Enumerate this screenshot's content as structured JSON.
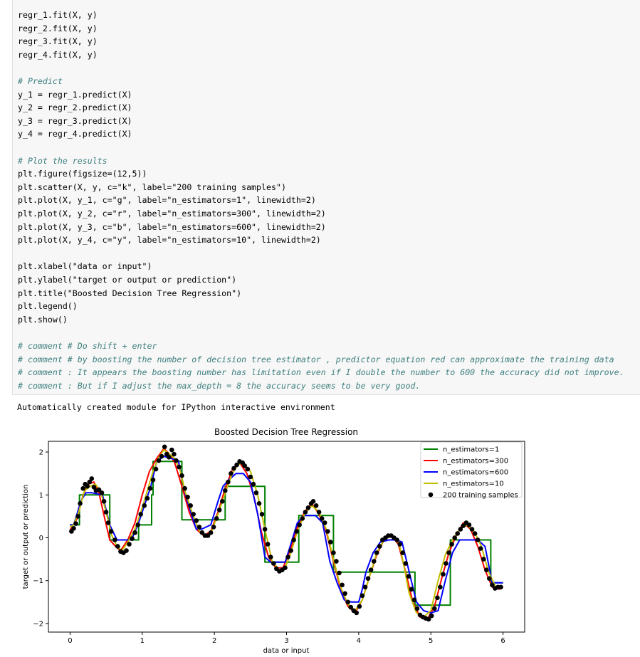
{
  "code_cell": {
    "lines": [
      {
        "text": "regr_1.fit(X, y)",
        "kind": "code"
      },
      {
        "text": "regr_2.fit(X, y)",
        "kind": "code"
      },
      {
        "text": "regr_3.fit(X, y)",
        "kind": "code"
      },
      {
        "text": "regr_4.fit(X, y)",
        "kind": "code"
      },
      {
        "text": "",
        "kind": "blank"
      },
      {
        "text": "# Predict",
        "kind": "comment"
      },
      {
        "text": "y_1 = regr_1.predict(X)",
        "kind": "code"
      },
      {
        "text": "y_2 = regr_2.predict(X)",
        "kind": "code"
      },
      {
        "text": "y_3 = regr_3.predict(X)",
        "kind": "code"
      },
      {
        "text": "y_4 = regr_4.predict(X)",
        "kind": "code"
      },
      {
        "text": "",
        "kind": "blank"
      },
      {
        "text": "# Plot the results",
        "kind": "comment"
      },
      {
        "text": "plt.figure(figsize=(12,5))",
        "kind": "code"
      },
      {
        "text": "plt.scatter(X, y, c=\"k\", label=\"200 training samples\")",
        "kind": "code"
      },
      {
        "text": "plt.plot(X, y_1, c=\"g\", label=\"n_estimators=1\", linewidth=2)",
        "kind": "code"
      },
      {
        "text": "plt.plot(X, y_2, c=\"r\", label=\"n_estimators=300\", linewidth=2)",
        "kind": "code"
      },
      {
        "text": "plt.plot(X, y_3, c=\"b\", label=\"n_estimators=600\", linewidth=2)",
        "kind": "code"
      },
      {
        "text": "plt.plot(X, y_4, c=\"y\", label=\"n_estimators=10\", linewidth=2)",
        "kind": "code"
      },
      {
        "text": "",
        "kind": "blank"
      },
      {
        "text": "plt.xlabel(\"data or input\")",
        "kind": "code"
      },
      {
        "text": "plt.ylabel(\"target or output or prediction\")",
        "kind": "code"
      },
      {
        "text": "plt.title(\"Boosted Decision Tree Regression\")",
        "kind": "code"
      },
      {
        "text": "plt.legend()",
        "kind": "code"
      },
      {
        "text": "plt.show()",
        "kind": "code"
      },
      {
        "text": "",
        "kind": "blank"
      },
      {
        "text": "# comment # Do shift + enter",
        "kind": "comment"
      },
      {
        "text": "# comment # by boosting the number of decision tree estimator , predictor equation red can approximate the training data",
        "kind": "comment"
      },
      {
        "text": "# comment : It appears the boosting number has limitation even if I double the number to 600 the accuracy did not improve.",
        "kind": "comment"
      },
      {
        "text": "# comment : But if I adjust the max_depth = 8 the accuracy seems to be very good.",
        "kind": "comment"
      }
    ]
  },
  "output": {
    "stdout": "Automatically created module for IPython interactive environment"
  },
  "chart_data": {
    "type": "line",
    "title": "Boosted Decision Tree Regression",
    "xlabel": "data or input",
    "ylabel": "target or output or prediction",
    "xlim": [
      -0.3,
      6.3
    ],
    "ylim": [
      -2.2,
      2.25
    ],
    "xticks": [
      0,
      1,
      2,
      3,
      4,
      5,
      6
    ],
    "yticks": [
      2,
      1,
      0,
      -1,
      -2
    ],
    "ytick_labels": [
      "2",
      "1",
      "0",
      "−1",
      "−2"
    ],
    "legend_position": "upper right",
    "legend": [
      {
        "label": "n_estimators=1",
        "color": "#008000",
        "kind": "line"
      },
      {
        "label": "n_estimators=300",
        "color": "#ff0000",
        "kind": "line"
      },
      {
        "label": "n_estimators=600",
        "color": "#0000ff",
        "kind": "line"
      },
      {
        "label": "n_estimators=10",
        "color": "#bfbf00",
        "kind": "line"
      },
      {
        "label": "200 training samples",
        "color": "#000000",
        "kind": "marker"
      }
    ],
    "series": [
      {
        "name": "n_estimators=1",
        "color": "#008000",
        "kind": "step",
        "steps": [
          [
            0.0,
            0.3
          ],
          [
            0.13,
            1.0
          ],
          [
            0.55,
            -0.05
          ],
          [
            0.95,
            0.3
          ],
          [
            1.13,
            1.0
          ],
          [
            1.15,
            1.78
          ],
          [
            1.55,
            0.42
          ],
          [
            2.15,
            1.2
          ],
          [
            2.7,
            -0.57
          ],
          [
            3.17,
            0.52
          ],
          [
            3.65,
            -0.8
          ],
          [
            4.78,
            -1.57
          ],
          [
            5.27,
            -0.05
          ],
          [
            5.83,
            -1.05
          ],
          [
            6.0,
            -1.05
          ]
        ]
      },
      {
        "name": "n_estimators=300",
        "color": "#ff0000",
        "kind": "line",
        "x": [
          0,
          0.1,
          0.18,
          0.25,
          0.33,
          0.4,
          0.48,
          0.55,
          0.63,
          0.7,
          0.8,
          0.9,
          1.0,
          1.1,
          1.2,
          1.3,
          1.38,
          1.45,
          1.55,
          1.65,
          1.75,
          1.85,
          1.95,
          2.05,
          2.15,
          2.25,
          2.35,
          2.45,
          2.55,
          2.65,
          2.75,
          2.85,
          2.95,
          3.05,
          3.15,
          3.25,
          3.35,
          3.45,
          3.55,
          3.65,
          3.75,
          3.85,
          3.95,
          4.05,
          4.15,
          4.25,
          4.35,
          4.45,
          4.55,
          4.65,
          4.75,
          4.85,
          4.95,
          5.05,
          5.15,
          5.25,
          5.35,
          5.45,
          5.55,
          5.65,
          5.75,
          5.85,
          5.95,
          6.0
        ],
        "y": [
          0.18,
          0.45,
          1.0,
          1.25,
          1.3,
          1.05,
          0.45,
          -0.05,
          -0.2,
          -0.3,
          -0.05,
          0.35,
          1.0,
          1.55,
          1.85,
          2.08,
          1.95,
          1.75,
          1.2,
          0.6,
          0.2,
          0.05,
          0.15,
          0.6,
          1.15,
          1.6,
          1.75,
          1.5,
          0.95,
          0.15,
          -0.45,
          -0.7,
          -0.7,
          -0.3,
          0.25,
          0.6,
          0.8,
          0.55,
          0.15,
          -0.55,
          -1.2,
          -1.6,
          -1.75,
          -1.45,
          -0.9,
          -0.4,
          -0.05,
          0.05,
          -0.15,
          -0.8,
          -1.5,
          -1.85,
          -1.9,
          -1.6,
          -0.95,
          -0.35,
          0.05,
          0.35,
          0.2,
          -0.2,
          -0.75,
          -1.15,
          -1.2,
          -1.15
        ]
      },
      {
        "name": "n_estimators=600",
        "color": "#0000ff",
        "kind": "line",
        "x": [
          0,
          0.05,
          0.15,
          0.22,
          0.3,
          0.45,
          0.55,
          0.65,
          0.85,
          0.95,
          1.05,
          1.12,
          1.2,
          1.3,
          1.4,
          1.5,
          1.6,
          1.7,
          1.75,
          1.82,
          1.95,
          2.05,
          2.12,
          2.2,
          2.3,
          2.4,
          2.5,
          2.6,
          2.7,
          2.78,
          2.88,
          2.98,
          3.05,
          3.15,
          3.25,
          3.4,
          3.5,
          3.6,
          3.7,
          3.8,
          3.9,
          4.0,
          4.05,
          4.1,
          4.2,
          4.3,
          4.42,
          4.52,
          4.6,
          4.7,
          4.8,
          4.9,
          5.0,
          5.1,
          5.2,
          5.3,
          5.4,
          5.5,
          5.55,
          5.65,
          5.75,
          5.85,
          6.0
        ],
        "y": [
          0.3,
          0.3,
          0.85,
          1.05,
          1.05,
          1.0,
          0.3,
          -0.05,
          -0.05,
          0.35,
          0.85,
          1.2,
          1.78,
          1.9,
          1.85,
          1.8,
          1.0,
          0.45,
          0.2,
          0.2,
          0.3,
          0.85,
          1.2,
          1.35,
          1.5,
          1.5,
          1.3,
          0.55,
          -0.45,
          -0.57,
          -0.57,
          -0.57,
          -0.2,
          0.35,
          0.52,
          0.52,
          0.35,
          -0.55,
          -1.05,
          -1.45,
          -1.5,
          -1.5,
          -1.2,
          -0.8,
          -0.35,
          -0.1,
          -0.05,
          -0.05,
          -0.1,
          -0.8,
          -1.5,
          -1.7,
          -1.75,
          -1.7,
          -1.0,
          -0.35,
          -0.05,
          -0.05,
          -0.05,
          -0.05,
          -0.2,
          -1.05,
          -1.05
        ]
      },
      {
        "name": "n_estimators=10",
        "color": "#bfbf00",
        "kind": "line",
        "x": [
          0,
          0.05,
          0.12,
          0.2,
          0.28,
          0.35,
          0.42,
          0.5,
          0.58,
          0.65,
          0.72,
          0.8,
          0.9,
          1.0,
          1.08,
          1.15,
          1.22,
          1.3,
          1.38,
          1.45,
          1.52,
          1.6,
          1.7,
          1.78,
          1.85,
          1.95,
          2.05,
          2.15,
          2.25,
          2.32,
          2.4,
          2.5,
          2.6,
          2.7,
          2.8,
          2.9,
          2.98,
          3.05,
          3.15,
          3.25,
          3.35,
          3.45,
          3.55,
          3.65,
          3.75,
          3.85,
          3.95,
          4.05,
          4.15,
          4.25,
          4.35,
          4.45,
          4.55,
          4.62,
          4.7,
          4.8,
          4.9,
          5.0,
          5.1,
          5.2,
          5.3,
          5.4,
          5.5,
          5.6,
          5.7,
          5.8,
          5.9,
          6.0
        ],
        "y": [
          0.25,
          0.3,
          0.6,
          1.1,
          1.2,
          1.25,
          1.1,
          0.6,
          0.05,
          -0.2,
          -0.3,
          -0.1,
          0.2,
          0.7,
          1.15,
          1.55,
          1.85,
          2.05,
          1.95,
          1.85,
          1.6,
          1.05,
          0.55,
          0.2,
          0.05,
          0.1,
          0.55,
          1.05,
          1.5,
          1.7,
          1.75,
          1.55,
          1.0,
          0.2,
          -0.55,
          -0.75,
          -0.7,
          -0.4,
          0.15,
          0.55,
          0.75,
          0.6,
          0.2,
          -0.5,
          -1.15,
          -1.55,
          -1.7,
          -1.45,
          -0.9,
          -0.35,
          -0.05,
          0.05,
          -0.05,
          -0.6,
          -1.3,
          -1.75,
          -1.85,
          -1.7,
          -1.0,
          -0.4,
          -0.05,
          0.2,
          0.3,
          0.15,
          -0.2,
          -0.8,
          -1.15,
          -1.15
        ]
      }
    ],
    "scatter": {
      "name": "200 training samples",
      "color": "#000000",
      "points": [
        [
          0.02,
          0.15
        ],
        [
          0.05,
          0.22
        ],
        [
          0.08,
          0.33
        ],
        [
          0.11,
          0.5
        ],
        [
          0.14,
          0.8
        ],
        [
          0.18,
          1.15
        ],
        [
          0.21,
          1.25
        ],
        [
          0.24,
          1.2
        ],
        [
          0.27,
          1.3
        ],
        [
          0.3,
          1.38
        ],
        [
          0.33,
          1.18
        ],
        [
          0.36,
          1.1
        ],
        [
          0.4,
          1.12
        ],
        [
          0.44,
          1.05
        ],
        [
          0.47,
          0.85
        ],
        [
          0.5,
          0.6
        ],
        [
          0.53,
          0.35
        ],
        [
          0.57,
          0.15
        ],
        [
          0.62,
          -0.05
        ],
        [
          0.66,
          -0.2
        ],
        [
          0.7,
          -0.32
        ],
        [
          0.74,
          -0.35
        ],
        [
          0.78,
          -0.3
        ],
        [
          0.82,
          -0.15
        ],
        [
          0.86,
          -0.02
        ],
        [
          0.9,
          0.12
        ],
        [
          0.94,
          0.3
        ],
        [
          0.98,
          0.55
        ],
        [
          1.03,
          0.75
        ],
        [
          1.07,
          0.92
        ],
        [
          1.11,
          1.15
        ],
        [
          1.15,
          1.35
        ],
        [
          1.19,
          1.6
        ],
        [
          1.23,
          1.8
        ],
        [
          1.27,
          1.9
        ],
        [
          1.31,
          2.12
        ],
        [
          1.34,
          1.95
        ],
        [
          1.37,
          1.88
        ],
        [
          1.41,
          2.05
        ],
        [
          1.44,
          1.95
        ],
        [
          1.47,
          1.8
        ],
        [
          1.51,
          1.65
        ],
        [
          1.55,
          1.45
        ],
        [
          1.59,
          1.15
        ],
        [
          1.63,
          0.95
        ],
        [
          1.67,
          0.75
        ],
        [
          1.71,
          0.55
        ],
        [
          1.75,
          0.4
        ],
        [
          1.79,
          0.25
        ],
        [
          1.83,
          0.12
        ],
        [
          1.87,
          0.05
        ],
        [
          1.91,
          0.05
        ],
        [
          1.95,
          0.12
        ],
        [
          1.99,
          0.25
        ],
        [
          2.03,
          0.45
        ],
        [
          2.07,
          0.65
        ],
        [
          2.11,
          0.85
        ],
        [
          2.15,
          1.1
        ],
        [
          2.19,
          1.3
        ],
        [
          2.23,
          1.5
        ],
        [
          2.27,
          1.62
        ],
        [
          2.31,
          1.7
        ],
        [
          2.35,
          1.78
        ],
        [
          2.39,
          1.75
        ],
        [
          2.42,
          1.68
        ],
        [
          2.46,
          1.6
        ],
        [
          2.5,
          1.42
        ],
        [
          2.54,
          1.25
        ],
        [
          2.58,
          1.05
        ],
        [
          2.62,
          0.8
        ],
        [
          2.66,
          0.55
        ],
        [
          2.7,
          0.2
        ],
        [
          2.74,
          -0.15
        ],
        [
          2.78,
          -0.45
        ],
        [
          2.82,
          -0.6
        ],
        [
          2.86,
          -0.72
        ],
        [
          2.9,
          -0.78
        ],
        [
          2.94,
          -0.75
        ],
        [
          2.98,
          -0.7
        ],
        [
          3.02,
          -0.45
        ],
        [
          3.06,
          -0.3
        ],
        [
          3.1,
          -0.05
        ],
        [
          3.14,
          0.15
        ],
        [
          3.18,
          0.3
        ],
        [
          3.22,
          0.45
        ],
        [
          3.26,
          0.6
        ],
        [
          3.3,
          0.7
        ],
        [
          3.34,
          0.8
        ],
        [
          3.37,
          0.85
        ],
        [
          3.41,
          0.75
        ],
        [
          3.45,
          0.6
        ],
        [
          3.49,
          0.45
        ],
        [
          3.53,
          0.35
        ],
        [
          3.57,
          0.15
        ],
        [
          3.61,
          -0.1
        ],
        [
          3.65,
          -0.35
        ],
        [
          3.69,
          -0.55
        ],
        [
          3.73,
          -0.82
        ],
        [
          3.77,
          -1.1
        ],
        [
          3.81,
          -1.3
        ],
        [
          3.85,
          -1.5
        ],
        [
          3.89,
          -1.62
        ],
        [
          3.93,
          -1.7
        ],
        [
          3.97,
          -1.75
        ],
        [
          4.01,
          -1.6
        ],
        [
          4.05,
          -1.35
        ],
        [
          4.09,
          -1.15
        ],
        [
          4.13,
          -0.95
        ],
        [
          4.17,
          -0.75
        ],
        [
          4.21,
          -0.55
        ],
        [
          4.25,
          -0.35
        ],
        [
          4.29,
          -0.2
        ],
        [
          4.33,
          -0.05
        ],
        [
          4.37,
          0.0
        ],
        [
          4.41,
          0.05
        ],
        [
          4.45,
          0.05
        ],
        [
          4.49,
          0.0
        ],
        [
          4.53,
          -0.05
        ],
        [
          4.57,
          -0.15
        ],
        [
          4.61,
          -0.35
        ],
        [
          4.65,
          -0.6
        ],
        [
          4.69,
          -0.9
        ],
        [
          4.73,
          -1.2
        ],
        [
          4.77,
          -1.45
        ],
        [
          4.81,
          -1.65
        ],
        [
          4.85,
          -1.8
        ],
        [
          4.89,
          -1.85
        ],
        [
          4.93,
          -1.88
        ],
        [
          4.97,
          -1.9
        ],
        [
          5.01,
          -1.82
        ],
        [
          5.05,
          -1.65
        ],
        [
          5.09,
          -1.4
        ],
        [
          5.13,
          -1.15
        ],
        [
          5.17,
          -0.85
        ],
        [
          5.21,
          -0.6
        ],
        [
          5.25,
          -0.35
        ],
        [
          5.29,
          -0.15
        ],
        [
          5.33,
          0.0
        ],
        [
          5.37,
          0.1
        ],
        [
          5.41,
          0.2
        ],
        [
          5.45,
          0.28
        ],
        [
          5.49,
          0.35
        ],
        [
          5.53,
          0.3
        ],
        [
          5.57,
          0.2
        ],
        [
          5.61,
          0.1
        ],
        [
          5.65,
          -0.05
        ],
        [
          5.69,
          -0.25
        ],
        [
          5.73,
          -0.5
        ],
        [
          5.77,
          -0.75
        ],
        [
          5.81,
          -0.95
        ],
        [
          5.85,
          -1.1
        ],
        [
          5.89,
          -1.18
        ],
        [
          5.93,
          -1.15
        ],
        [
          5.97,
          -1.15
        ]
      ]
    }
  }
}
